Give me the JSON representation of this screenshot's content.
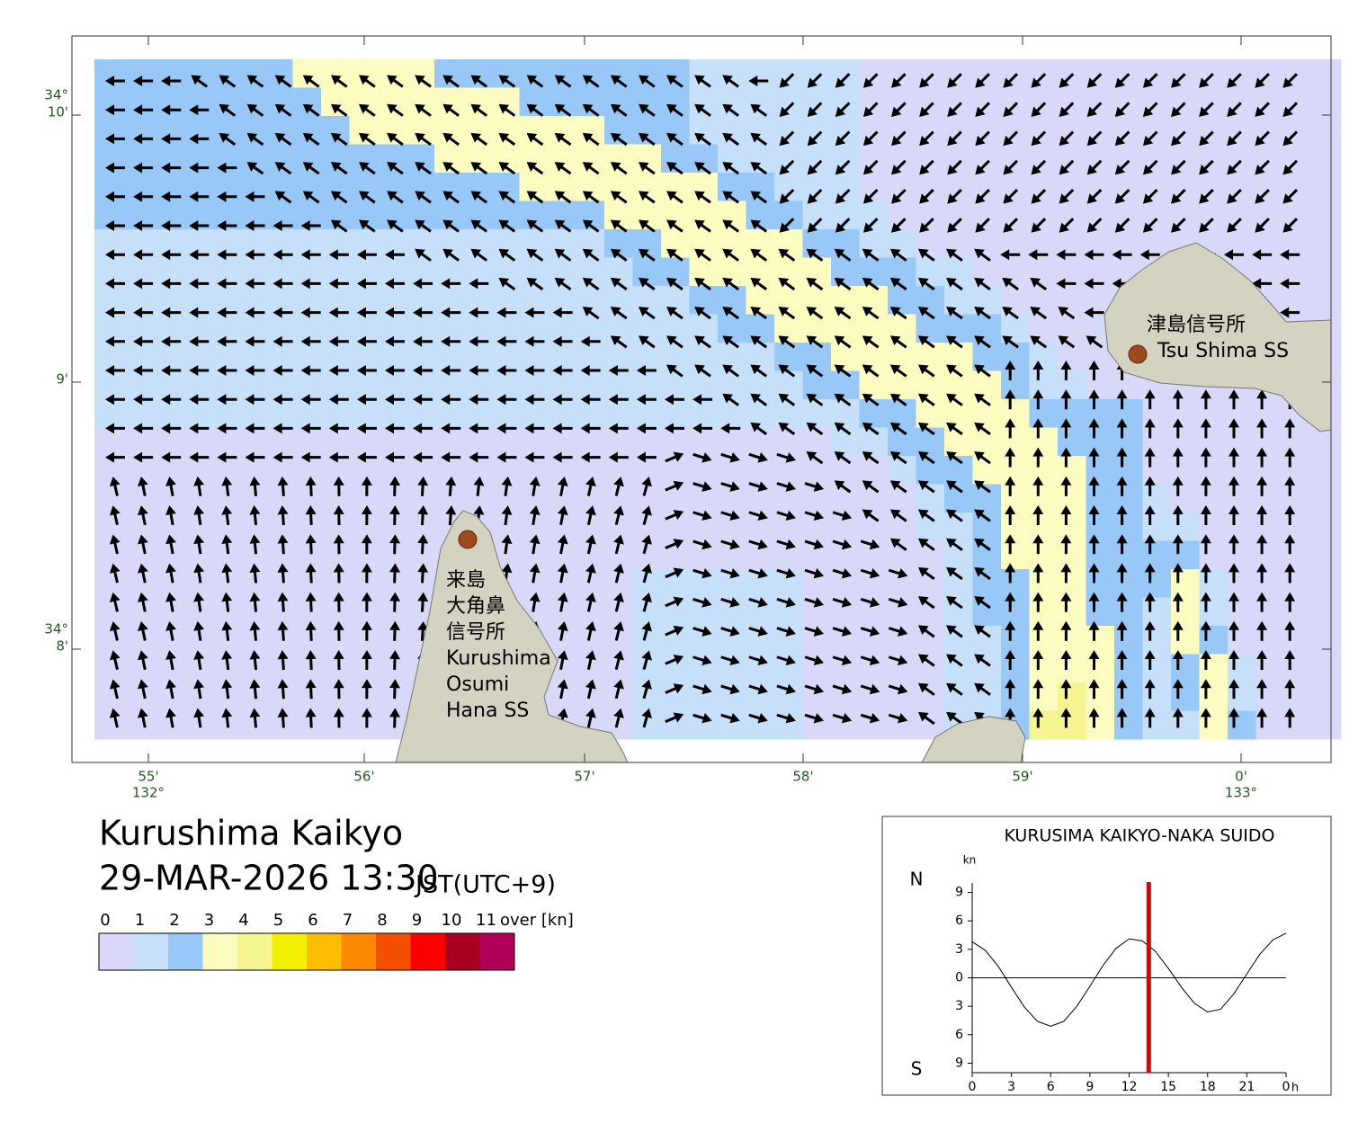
{
  "map": {
    "title": "Kurushima Kaikyo",
    "datetime": "29-MAR-2026 13:30",
    "timezone": "JST(UTC+9)",
    "lat_ticks": [
      {
        "deg": "34°",
        "min": "10'"
      },
      {
        "min": "9'"
      },
      {
        "deg": "34°",
        "min": "8'"
      }
    ],
    "lon_ticks": [
      {
        "min": "55'",
        "deg": "132°"
      },
      {
        "min": "56'"
      },
      {
        "min": "57'"
      },
      {
        "min": "58'"
      },
      {
        "min": "59'"
      },
      {
        "min": "0'",
        "deg": "133°"
      }
    ],
    "stations": [
      {
        "lines": [
          "津島信号所",
          "Tsu Shima SS"
        ]
      },
      {
        "lines": [
          "来島",
          "大角鼻",
          "信号所",
          "Kurushima",
          "Osumi",
          "Hana SS"
        ]
      }
    ],
    "legend": {
      "ticks": [
        0,
        1,
        2,
        3,
        4,
        5,
        6,
        7,
        8,
        9,
        10,
        11
      ],
      "over_label": "over [kn]",
      "colors": [
        "#d8d8f8",
        "#c6e0fa",
        "#98c8f8",
        "#fcfcc0",
        "#f4f490",
        "#f4ef00",
        "#fcbc00",
        "#fc8800",
        "#f45000",
        "#fc0000",
        "#a80020",
        "#b00058"
      ]
    }
  },
  "chart_data": {
    "type": "line",
    "title": "KURUSIMA KAIKYO-NAKA SUIDO",
    "y_unit": "kn",
    "north_label": "N",
    "south_label": "S",
    "x_unit": "h",
    "x": [
      0,
      1,
      2,
      3,
      4,
      5,
      6,
      7,
      8,
      9,
      10,
      11,
      12,
      13,
      14,
      15,
      16,
      17,
      18,
      19,
      20,
      21,
      22,
      23,
      24
    ],
    "values": [
      3.8,
      2.9,
      1.2,
      -1.0,
      -3.1,
      -4.6,
      -5.1,
      -4.6,
      -3.0,
      -0.9,
      1.3,
      3.1,
      4.1,
      3.9,
      2.8,
      1.0,
      -1.0,
      -2.7,
      -3.6,
      -3.3,
      -1.7,
      0.4,
      2.5,
      4.0,
      4.7
    ],
    "color": "#000000",
    "marker_x": 13.5,
    "marker_color": "#e00000",
    "xlim": [
      0,
      24
    ],
    "ylim": [
      -10,
      10
    ],
    "xticks": [
      0,
      3,
      6,
      9,
      12,
      15,
      18,
      21,
      {
        "value": 24,
        "label": "0"
      }
    ],
    "yticks": [
      9,
      6,
      3,
      0,
      {
        "value": -3,
        "label": "3"
      },
      {
        "value": -6,
        "label": "6"
      },
      {
        "value": -9,
        "label": "9"
      }
    ]
  }
}
